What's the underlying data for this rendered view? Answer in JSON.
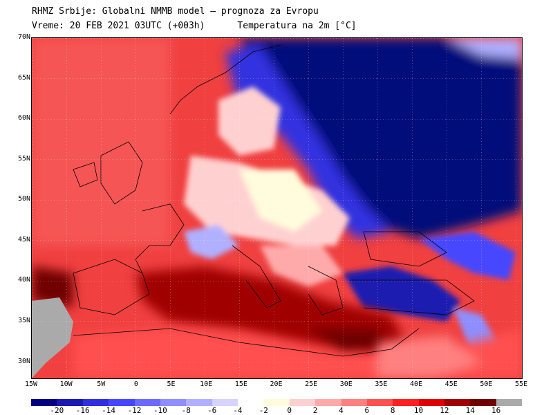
{
  "header": {
    "line1": "RHMZ Srbije: Globalni NMMB model — prognoza za Evropu",
    "line2": "Vreme: 20 FEB 2021 03UTC (+003h)      Temperatura na 2m [°C]"
  },
  "map": {
    "lon_range": [
      -15,
      55
    ],
    "lat_range": [
      28,
      70
    ],
    "lat_labels": [
      "70N",
      "65N",
      "60N",
      "55N",
      "50N",
      "45N",
      "40N",
      "35N",
      "30N"
    ],
    "lon_labels": [
      "15W",
      "10W",
      "5W",
      "0",
      "5E",
      "10E",
      "15E",
      "20E",
      "25E",
      "30E",
      "35E",
      "40E",
      "45E",
      "50E",
      "55E"
    ],
    "ocean_color": "#f04040",
    "land_mask_color": "#aaaaaa"
  },
  "colorbar": {
    "colors": [
      "#000080",
      "#1a1ab0",
      "#2f2fe0",
      "#4646ff",
      "#6a6aff",
      "#8e8eff",
      "#b0b0ff",
      "#d4d4ff",
      "#ffffff",
      "#fffbdc",
      "#ffd0d0",
      "#ffaaaa",
      "#ff8080",
      "#ff5050",
      "#ff2020",
      "#e00000",
      "#a00000",
      "#700000",
      "#aaaaaa"
    ],
    "labels": [
      "-20",
      "-16",
      "-14",
      "-12",
      "-10",
      "-8",
      "-6",
      "-4",
      "-2",
      "0",
      "2",
      "4",
      "6",
      "8",
      "10",
      "12",
      "14",
      "16"
    ]
  }
}
